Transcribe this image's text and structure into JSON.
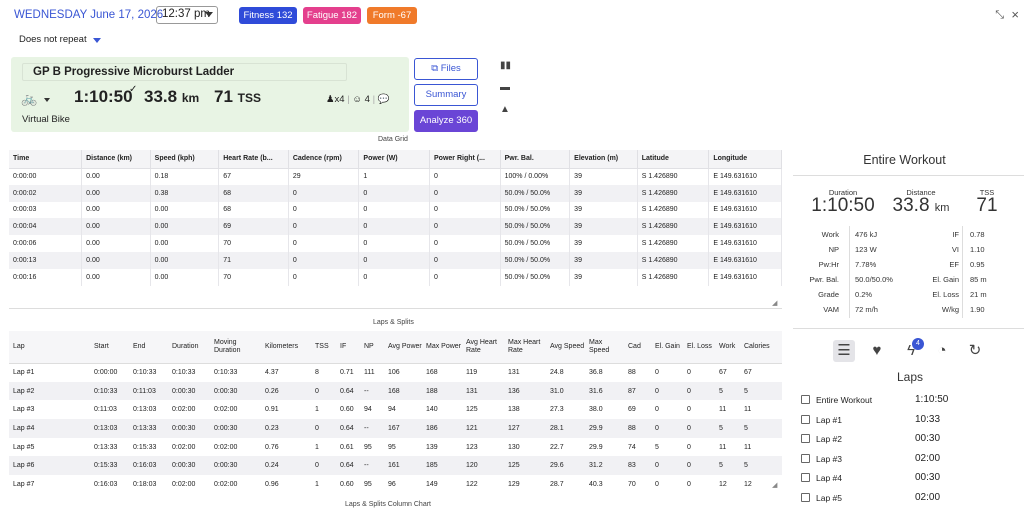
{
  "header": {
    "date": "WEDNESDAY June 17, 2026",
    "time": "12:37 pm",
    "badges": {
      "fitness": "Fitness 132",
      "fatigue": "Fatigue 182",
      "form": "Form -67"
    },
    "repeat": "Does not repeat"
  },
  "workout": {
    "title": "GP B Progressive Microburst Ladder",
    "duration": "1:10:50",
    "distance": "33.8",
    "distance_unit": "km",
    "tss": "71",
    "tss_unit": "TSS",
    "interval_count": "x4",
    "feel_count": "4",
    "type": "Virtual Bike"
  },
  "buttons": {
    "files": "Files",
    "summary": "Summary",
    "analyze": "Analyze 360"
  },
  "data_grid": {
    "label": "Data Grid",
    "columns": [
      "Time",
      "Distance (km)",
      "Speed (kph)",
      "Heart Rate (b...",
      "Cadence (rpm)",
      "Power (W)",
      "Power Right (...",
      "Pwr. Bal.",
      "Elevation (m)",
      "Latitude",
      "Longitude"
    ],
    "rows": [
      [
        "0:00:00",
        "0.00",
        "0.18",
        "67",
        "29",
        "1",
        "0",
        "100% / 0.00%",
        "39",
        "S 1.426890",
        "E 149.631610"
      ],
      [
        "0:00:02",
        "0.00",
        "0.38",
        "68",
        "0",
        "0",
        "0",
        "50.0% / 50.0%",
        "39",
        "S 1.426890",
        "E 149.631610"
      ],
      [
        "0:00:03",
        "0.00",
        "0.00",
        "68",
        "0",
        "0",
        "0",
        "50.0% / 50.0%",
        "39",
        "S 1.426890",
        "E 149.631610"
      ],
      [
        "0:00:04",
        "0.00",
        "0.00",
        "69",
        "0",
        "0",
        "0",
        "50.0% / 50.0%",
        "39",
        "S 1.426890",
        "E 149.631610"
      ],
      [
        "0:00:06",
        "0.00",
        "0.00",
        "70",
        "0",
        "0",
        "0",
        "50.0% / 50.0%",
        "39",
        "S 1.426890",
        "E 149.631610"
      ],
      [
        "0:00:13",
        "0.00",
        "0.00",
        "71",
        "0",
        "0",
        "0",
        "50.0% / 50.0%",
        "39",
        "S 1.426890",
        "E 149.631610"
      ],
      [
        "0:00:16",
        "0.00",
        "0.00",
        "70",
        "0",
        "0",
        "0",
        "50.0% / 50.0%",
        "39",
        "S 1.426890",
        "E 149.631610"
      ]
    ]
  },
  "laps_table": {
    "label": "Laps & Splits",
    "columns": [
      "Lap",
      "Start",
      "End",
      "Duration",
      "Moving Duration",
      "Kilometers",
      "TSS",
      "IF",
      "NP",
      "Avg Power",
      "Max Power",
      "Avg Heart Rate",
      "Max Heart Rate",
      "Avg Speed",
      "Max Speed",
      "Cad",
      "El. Gain",
      "El. Loss",
      "Work",
      "Calories"
    ],
    "rows": [
      [
        "Lap #1",
        "0:00:00",
        "0:10:33",
        "0:10:33",
        "0:10:33",
        "4.37",
        "8",
        "0.71",
        "111",
        "106",
        "168",
        "119",
        "131",
        "24.8",
        "36.8",
        "88",
        "0",
        "0",
        "67",
        "67"
      ],
      [
        "Lap #2",
        "0:10:33",
        "0:11:03",
        "0:00:30",
        "0:00:30",
        "0.26",
        "0",
        "0.64",
        "--",
        "168",
        "188",
        "131",
        "136",
        "31.0",
        "31.6",
        "87",
        "0",
        "0",
        "5",
        "5"
      ],
      [
        "Lap #3",
        "0:11:03",
        "0:13:03",
        "0:02:00",
        "0:02:00",
        "0.91",
        "1",
        "0.60",
        "94",
        "94",
        "140",
        "125",
        "138",
        "27.3",
        "38.0",
        "69",
        "0",
        "0",
        "11",
        "11"
      ],
      [
        "Lap #4",
        "0:13:03",
        "0:13:33",
        "0:00:30",
        "0:00:30",
        "0.23",
        "0",
        "0.64",
        "--",
        "167",
        "186",
        "121",
        "127",
        "28.1",
        "29.9",
        "88",
        "0",
        "0",
        "5",
        "5"
      ],
      [
        "Lap #5",
        "0:13:33",
        "0:15:33",
        "0:02:00",
        "0:02:00",
        "0.76",
        "1",
        "0.61",
        "95",
        "95",
        "139",
        "123",
        "130",
        "22.7",
        "29.9",
        "74",
        "5",
        "0",
        "11",
        "11"
      ],
      [
        "Lap #6",
        "0:15:33",
        "0:16:03",
        "0:00:30",
        "0:00:30",
        "0.24",
        "0",
        "0.64",
        "--",
        "161",
        "185",
        "120",
        "125",
        "29.6",
        "31.2",
        "83",
        "0",
        "0",
        "5",
        "5"
      ],
      [
        "Lap #7",
        "0:16:03",
        "0:18:03",
        "0:02:00",
        "0:02:00",
        "0.96",
        "1",
        "0.60",
        "95",
        "96",
        "149",
        "122",
        "129",
        "28.7",
        "40.3",
        "70",
        "0",
        "0",
        "12",
        "12"
      ]
    ]
  },
  "chart_caption": "Laps & Splits Column Chart",
  "summary": {
    "title": "Entire Workout",
    "duration_label": "Duration",
    "duration": "1:10:50",
    "distance_label": "Distance",
    "distance": "33.8",
    "distance_unit": "km",
    "tss_label": "TSS",
    "tss": "71",
    "metrics": [
      {
        "k": "Work",
        "v": "476 kJ",
        "k2": "IF",
        "v2": "0.78"
      },
      {
        "k": "NP",
        "v": "123 W",
        "k2": "VI",
        "v2": "1.10"
      },
      {
        "k": "Pw:Hr",
        "v": "7.78%",
        "k2": "EF",
        "v2": "0.95"
      },
      {
        "k": "Pwr. Bal.",
        "v": "50.0/50.0%",
        "k2": "El. Gain",
        "v2": "85 m"
      },
      {
        "k": "Grade",
        "v": "0.2%",
        "k2": "El. Loss",
        "v2": "21 m"
      },
      {
        "k": "VAM",
        "v": "72 m/h",
        "k2": "W/kg",
        "v2": "1.90"
      }
    ],
    "peaks_badge": "4",
    "laps_heading": "Laps",
    "laps": [
      {
        "label": "Entire Workout",
        "time": "1:10:50"
      },
      {
        "label": "Lap #1",
        "time": "10:33"
      },
      {
        "label": "Lap #2",
        "time": "00:30"
      },
      {
        "label": "Lap #3",
        "time": "02:00"
      },
      {
        "label": "Lap #4",
        "time": "00:30"
      },
      {
        "label": "Lap #5",
        "time": "02:00"
      }
    ]
  },
  "colors": {
    "accent": "#3a56d4",
    "fitness": "#2f4bd9",
    "fatigue": "#e43f8d",
    "form": "#f07a2a",
    "analyze": "#6a45d6",
    "card": "#e8f4e4"
  }
}
